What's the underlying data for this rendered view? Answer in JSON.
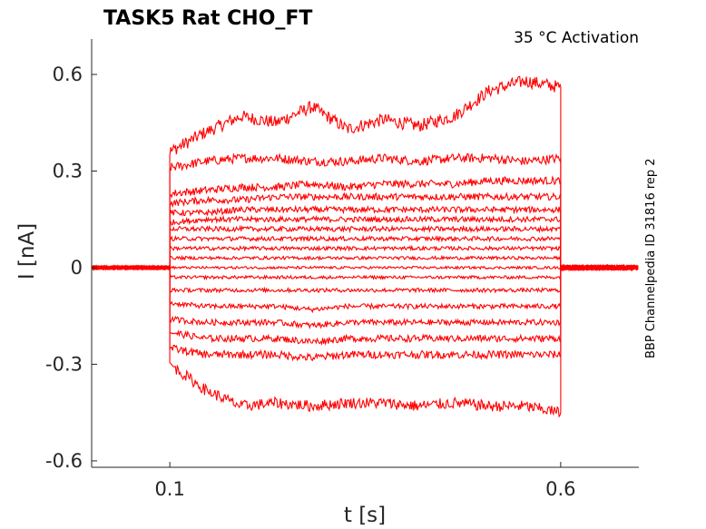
{
  "chart_data": {
    "type": "line",
    "title": "TASK5  Rat  CHO_FT",
    "annotation": "35 °C  Activation",
    "side_label": "BBP Channelpedia ID 31816 rep 2",
    "xlabel": "t [s]",
    "ylabel": "I [nA]",
    "xlim": [
      0.0,
      0.7
    ],
    "ylim": [
      -0.62,
      0.71
    ],
    "xticks": [
      0.1,
      0.6
    ],
    "xtick_labels": [
      "0.1",
      "0.6"
    ],
    "yticks": [
      0.6,
      0.3,
      0,
      -0.3,
      -0.6
    ],
    "ytick_labels": [
      "0.6",
      "0.3",
      "0",
      "-0.3",
      "-0.6"
    ],
    "grid": false,
    "legend": "none",
    "color": "#ff0000",
    "pulse": {
      "start": 0.1,
      "end": 0.6
    },
    "baseline_pre": 0.0,
    "series_levels": [
      [
        0.36,
        0.42,
        0.47,
        0.45,
        0.5,
        0.43,
        0.46,
        0.44,
        0.47,
        0.55,
        0.58,
        0.56
      ],
      [
        0.31,
        0.33,
        0.34,
        0.34,
        0.33,
        0.33,
        0.34,
        0.33,
        0.34,
        0.34,
        0.33,
        0.34
      ],
      [
        0.23,
        0.24,
        0.25,
        0.25,
        0.26,
        0.25,
        0.26,
        0.26,
        0.26,
        0.27,
        0.27,
        0.27
      ],
      [
        0.2,
        0.21,
        0.21,
        0.22,
        0.22,
        0.22,
        0.22,
        0.22,
        0.22,
        0.22,
        0.22,
        0.22
      ],
      [
        0.17,
        0.17,
        0.18,
        0.18,
        0.18,
        0.18,
        0.18,
        0.18,
        0.18,
        0.18,
        0.18,
        0.18
      ],
      [
        0.14,
        0.15,
        0.15,
        0.15,
        0.15,
        0.15,
        0.15,
        0.15,
        0.15,
        0.15,
        0.15,
        0.15
      ],
      [
        0.12,
        0.12,
        0.12,
        0.12,
        0.12,
        0.12,
        0.12,
        0.12,
        0.12,
        0.12,
        0.12,
        0.12
      ],
      [
        0.09,
        0.09,
        0.09,
        0.09,
        0.09,
        0.09,
        0.09,
        0.09,
        0.09,
        0.09,
        0.09,
        0.09
      ],
      [
        0.06,
        0.06,
        0.06,
        0.06,
        0.06,
        0.06,
        0.06,
        0.06,
        0.06,
        0.06,
        0.06,
        0.06
      ],
      [
        0.03,
        0.03,
        0.03,
        0.03,
        0.03,
        0.03,
        0.03,
        0.03,
        0.03,
        0.03,
        0.03,
        0.03
      ],
      [
        0.0,
        0.0,
        0.0,
        0.0,
        0.0,
        0.0,
        0.0,
        0.0,
        0.0,
        0.0,
        0.0,
        0.0
      ],
      [
        -0.03,
        -0.03,
        -0.03,
        -0.03,
        -0.03,
        -0.03,
        -0.03,
        -0.03,
        -0.03,
        -0.03,
        -0.03,
        -0.03
      ],
      [
        -0.07,
        -0.07,
        -0.07,
        -0.07,
        -0.07,
        -0.07,
        -0.07,
        -0.07,
        -0.07,
        -0.07,
        -0.07,
        -0.07
      ],
      [
        -0.11,
        -0.12,
        -0.12,
        -0.12,
        -0.13,
        -0.12,
        -0.12,
        -0.12,
        -0.12,
        -0.12,
        -0.12,
        -0.12
      ],
      [
        -0.16,
        -0.17,
        -0.17,
        -0.17,
        -0.18,
        -0.17,
        -0.17,
        -0.17,
        -0.17,
        -0.17,
        -0.17,
        -0.17
      ],
      [
        -0.2,
        -0.22,
        -0.22,
        -0.22,
        -0.23,
        -0.22,
        -0.22,
        -0.22,
        -0.22,
        -0.22,
        -0.22,
        -0.22
      ],
      [
        -0.25,
        -0.27,
        -0.27,
        -0.27,
        -0.28,
        -0.27,
        -0.27,
        -0.27,
        -0.27,
        -0.27,
        -0.27,
        -0.27
      ],
      [
        -0.3,
        -0.38,
        -0.43,
        -0.42,
        -0.43,
        -0.42,
        -0.42,
        -0.43,
        -0.42,
        -0.43,
        -0.43,
        -0.45
      ]
    ]
  }
}
